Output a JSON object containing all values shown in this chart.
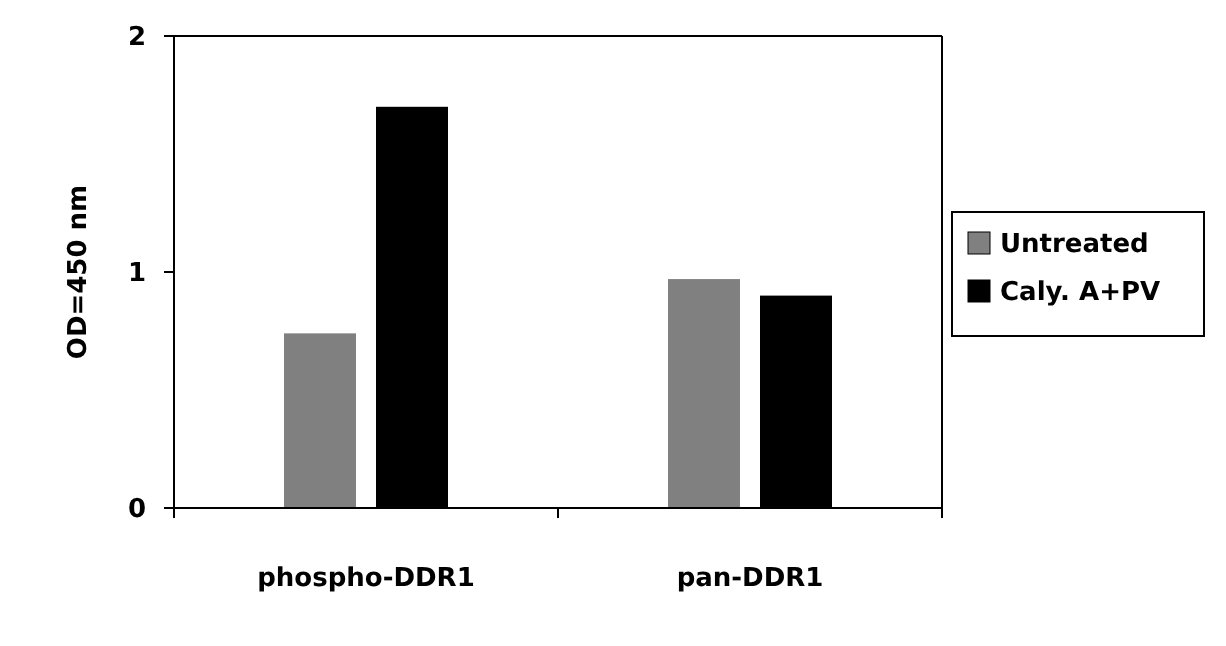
{
  "chart_data": {
    "type": "bar",
    "ylabel": "OD=450 nm",
    "categories": [
      "phospho-DDR1",
      "pan-DDR1"
    ],
    "series": [
      {
        "name": "Untreated",
        "color": "#808080",
        "values": [
          0.74,
          0.97
        ]
      },
      {
        "name": "Caly. A+PV",
        "color": "#000000",
        "values": [
          1.7,
          0.9
        ]
      }
    ],
    "ylim": [
      0,
      2
    ],
    "yticks": [
      0,
      1,
      2
    ],
    "grid": false,
    "legend": "right"
  }
}
